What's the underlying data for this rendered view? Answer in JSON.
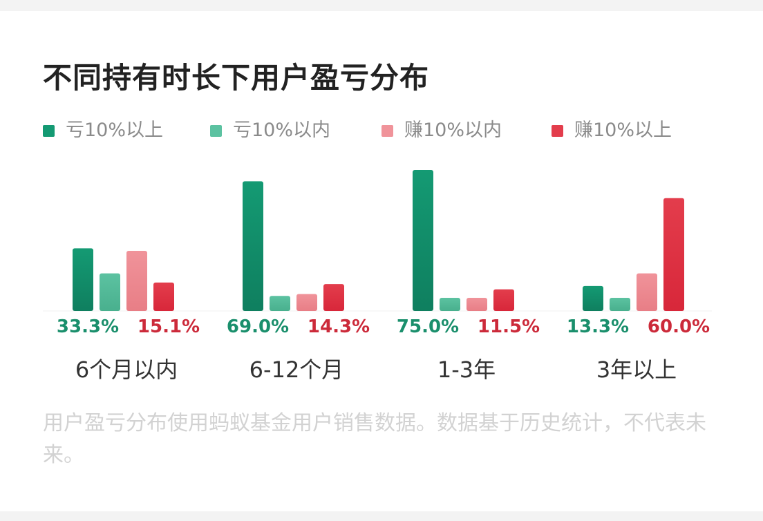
{
  "header": {
    "title": "不同持有时长下用户盈亏分布"
  },
  "legend": [
    {
      "label": "亏10%以上",
      "color": "#149a73"
    },
    {
      "label": "亏10%以内",
      "color": "#5cc2a1"
    },
    {
      "label": "赚10%以内",
      "color": "#f0939a"
    },
    {
      "label": "赚10%以上",
      "color": "#e33d4c"
    }
  ],
  "chart_data": {
    "type": "bar",
    "title": "不同持有时长下用户盈亏分布",
    "categories": [
      "6个月以内",
      "6-12个月",
      "1-3年",
      "3年以上"
    ],
    "series": [
      {
        "name": "亏10%以上",
        "values": [
          33.3,
          69.0,
          75.0,
          13.3
        ]
      },
      {
        "name": "亏10%以内",
        "values": [
          20.0,
          8.0,
          7.0,
          7.0
        ]
      },
      {
        "name": "赚10%以内",
        "values": [
          32.0,
          9.0,
          7.0,
          20.0
        ]
      },
      {
        "name": "赚10%以上",
        "values": [
          15.1,
          14.3,
          11.5,
          60.0
        ]
      }
    ],
    "labels": [
      {
        "loss": "33.3%",
        "gain": "15.1%"
      },
      {
        "loss": "69.0%",
        "gain": "14.3%"
      },
      {
        "loss": "75.0%",
        "gain": "11.5%"
      },
      {
        "loss": "13.3%",
        "gain": "60.0%"
      }
    ],
    "label_colors": {
      "loss": "#1a8f6c",
      "gain": "#cc2a3a"
    },
    "ylim": [
      0,
      75
    ],
    "grid": false
  },
  "footnote": "用户盈亏分布使用蚂蚁基金用户销售数据。数据基于历史统计，不代表未来。"
}
